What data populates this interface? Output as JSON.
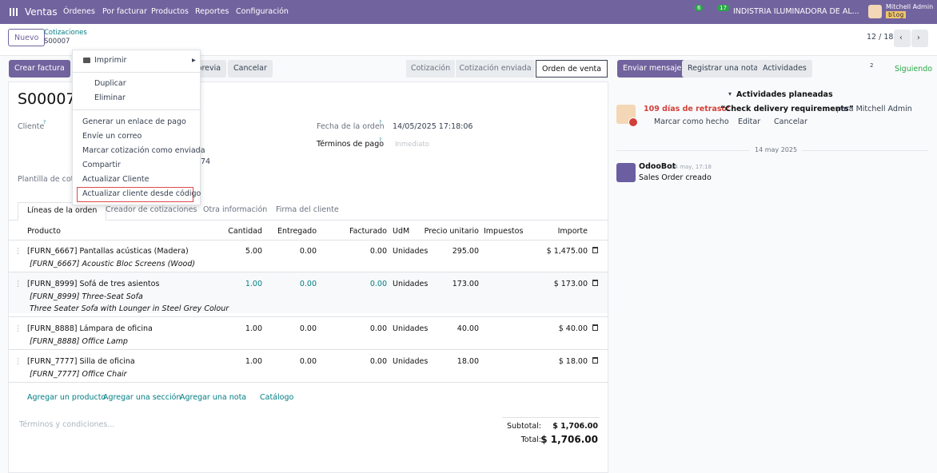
{
  "navbar": {
    "app": "Ventas",
    "menu": [
      "Órdenes",
      "Por facturar",
      "Productos",
      "Reportes",
      "Configuración"
    ],
    "messages_badge": "6",
    "activities_badge": "17",
    "company": "INDISTRIA ILUMINADORA DE AL...",
    "user": "Mitchell Admin",
    "database": "blog"
  },
  "breadcrumb": {
    "new_button": "Nuevo",
    "parent": "Cotizaciones",
    "record": "S00007",
    "pager": "12 / 18"
  },
  "actions": [
    "Crear factura",
    "Vista previa",
    "Cancelar"
  ],
  "statusbar": [
    "Cotización",
    "Cotización enviada",
    "Orden de venta"
  ],
  "chatter_buttons": {
    "send": "Enviar mensaje",
    "note": "Registrar una nota",
    "activities": "Actividades",
    "followers": "2",
    "following": "Siguiendo"
  },
  "form": {
    "name": "S00007",
    "customer_label": "Cliente",
    "help": "?",
    "order_date_label": "Fecha de la orden",
    "order_date": "14/05/2025 17:18:06",
    "payment_terms_label": "Términos de pago",
    "payment_terms_placeholder": "Inmediato",
    "partial_value": "74",
    "template_label": "Plantilla de cotiz"
  },
  "tabs": [
    "Líneas de la orden",
    "Creador de cotizaciones",
    "Otra información",
    "Firma del cliente"
  ],
  "table": {
    "headers": [
      "Producto",
      "Cantidad",
      "Entregado",
      "Facturado",
      "UdM",
      "Precio unitario",
      "Impuestos",
      "Importe"
    ],
    "rows": [
      {
        "product": "[FURN_6667] Pantallas acústicas (Madera)",
        "description": [
          "[FURN_6667] Acoustic Bloc Screens (Wood)"
        ],
        "quantity": "5.00",
        "delivered": "0.00",
        "invoiced": "0.00",
        "uom": "Unidades",
        "price": "295.00",
        "amount": "$ 1,475.00"
      },
      {
        "product": "[FURN_8999] Sofá de tres asientos",
        "description": [
          "[FURN_8999] Three-Seat Sofa",
          "Three Seater Sofa with Lounger in Steel Grey Colour"
        ],
        "quantity": "1.00",
        "delivered": "0.00",
        "invoiced": "0.00",
        "uom": "Unidades",
        "price": "173.00",
        "amount": "$ 173.00"
      },
      {
        "product": "[FURN_8888] Lámpara de oficina",
        "description": [
          "[FURN_8888] Office Lamp"
        ],
        "quantity": "1.00",
        "delivered": "0.00",
        "invoiced": "0.00",
        "uom": "Unidades",
        "price": "40.00",
        "amount": "$ 40.00"
      },
      {
        "product": "[FURN_7777] Silla de oficina",
        "description": [
          "[FURN_7777] Office Chair"
        ],
        "quantity": "1.00",
        "delivered": "0.00",
        "invoiced": "0.00",
        "uom": "Unidades",
        "price": "18.00",
        "amount": "$ 18.00"
      }
    ],
    "add_links": [
      "Agregar un producto",
      "Agregar una sección",
      "Agregar una nota",
      "Catálogo"
    ]
  },
  "terms_placeholder": "Términos y condiciones...",
  "totals": {
    "subtotal_label": "Subtotal:",
    "subtotal": "$ 1,706.00",
    "total_label": "Total:",
    "total": "$ 1,706.00"
  },
  "dropdown": {
    "print": "Imprimir",
    "items_a": [
      "Duplicar",
      "Eliminar"
    ],
    "items_b": [
      "Generar un enlace de pago",
      "Envíe un correo",
      "Marcar cotización como enviada",
      "Compartir",
      "Actualizar Cliente",
      "Actualizar cliente desde código"
    ]
  },
  "chatter": {
    "planned": "Actividades planeadas",
    "late": "109 días de retraso:",
    "activity": "“Check delivery requirements”",
    "for": "para Mitchell Admin",
    "done": "Marcar como hecho",
    "edit": "Editar",
    "cancel": "Cancelar",
    "date_separator": "14 may 2025",
    "author": "OdooBot",
    "time": "14 may, 17:18",
    "body": "Sales Order creado"
  }
}
